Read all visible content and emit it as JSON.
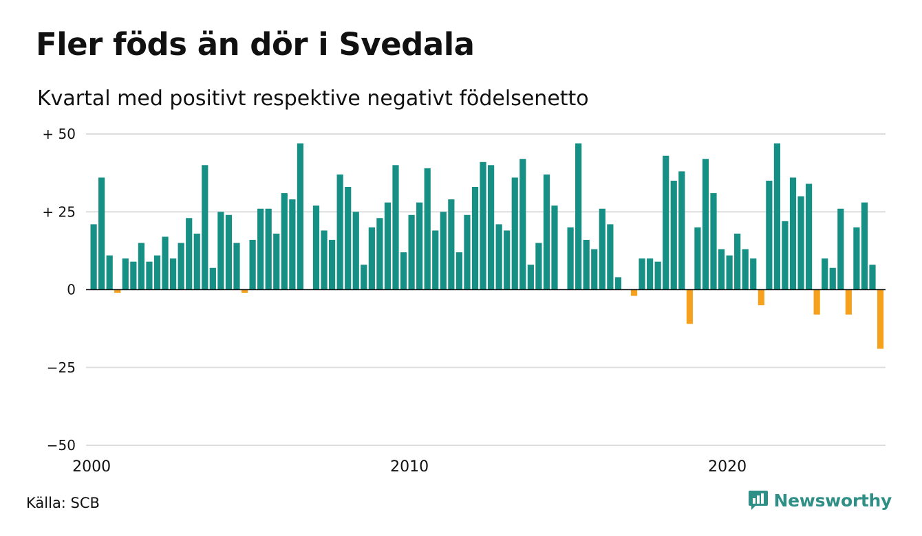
{
  "header": {
    "title": "Fler föds än dör i Svedala",
    "subtitle": "Kvartal med positivt respektive negativt födelsenetto"
  },
  "footer": {
    "source": "Källa: SCB",
    "brand": "Newsworthy"
  },
  "colors": {
    "positive": "#168f84",
    "negative": "#f5a11d",
    "grid": "#dddddd",
    "baseline": "#111111",
    "brand": "#2f8f86"
  },
  "icons": {
    "brand_logo": "newsworthy-logo-icon"
  },
  "chart_data": {
    "type": "bar",
    "title": "Fler föds än dör i Svedala",
    "subtitle": "Kvartal med positivt respektive negativt födelsenetto",
    "xlabel": "",
    "ylabel": "",
    "ylim": [
      -50,
      50
    ],
    "yticks": [
      50,
      25,
      0,
      -25,
      -50
    ],
    "ytick_labels": [
      "+ 50",
      "+ 25",
      "0",
      "−25",
      "−50"
    ],
    "xticks": [
      2000,
      2010,
      2020
    ],
    "grid": true,
    "legend": "none",
    "start": "2000 Q1",
    "frequency": "quarterly",
    "values": [
      21,
      36,
      11,
      -1,
      10,
      9,
      15,
      9,
      11,
      17,
      10,
      15,
      23,
      18,
      40,
      7,
      25,
      24,
      15,
      -1,
      16,
      26,
      26,
      18,
      31,
      29,
      47,
      0,
      27,
      19,
      16,
      37,
      33,
      25,
      8,
      20,
      23,
      28,
      40,
      12,
      24,
      28,
      39,
      19,
      25,
      29,
      12,
      24,
      33,
      41,
      40,
      21,
      19,
      36,
      42,
      8,
      15,
      37,
      27,
      0,
      20,
      47,
      16,
      13,
      26,
      21,
      4,
      0,
      -2,
      10,
      10,
      9,
      43,
      35,
      38,
      -11,
      20,
      42,
      31,
      13,
      11,
      18,
      13,
      10,
      -5,
      35,
      47,
      22,
      36,
      30,
      34,
      -8,
      10,
      7,
      26,
      -8,
      20,
      28,
      8,
      -19
    ]
  }
}
